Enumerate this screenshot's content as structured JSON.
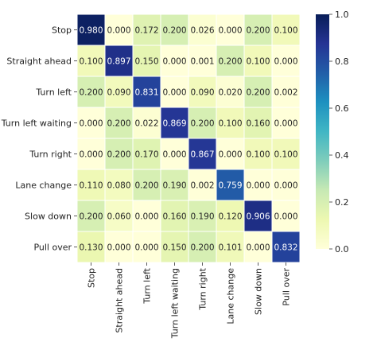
{
  "chart_data": {
    "type": "heatmap",
    "rows": [
      "Stop",
      "Straight ahead",
      "Turn left",
      "Turn left waiting",
      "Turn right",
      "Lane change",
      "Slow down",
      "Pull over"
    ],
    "columns": [
      "Stop",
      "Straight ahead",
      "Turn left",
      "Turn left waiting",
      "Turn right",
      "Lane change",
      "Slow down",
      "Pull over"
    ],
    "values": [
      [
        0.98,
        0.0,
        0.172,
        0.2,
        0.026,
        0.0,
        0.2,
        0.1
      ],
      [
        0.1,
        0.897,
        0.15,
        0.0,
        0.001,
        0.2,
        0.1,
        0.0
      ],
      [
        0.2,
        0.09,
        0.831,
        0.0,
        0.09,
        0.02,
        0.2,
        0.002
      ],
      [
        0.0,
        0.2,
        0.022,
        0.869,
        0.2,
        0.1,
        0.16,
        0.0
      ],
      [
        0.0,
        0.2,
        0.17,
        0.0,
        0.867,
        0.0,
        0.1,
        0.1
      ],
      [
        0.11,
        0.08,
        0.2,
        0.19,
        0.002,
        0.759,
        0.0,
        0.0
      ],
      [
        0.2,
        0.06,
        0.0,
        0.16,
        0.19,
        0.12,
        0.906,
        0.0
      ],
      [
        0.13,
        0.0,
        0.0,
        0.15,
        0.2,
        0.101,
        0.0,
        0.832
      ]
    ],
    "value_format": "3 decimals",
    "colormap": "YlGnBu",
    "color_range": [
      0.0,
      1.0
    ],
    "colorbar_ticks": [
      0.0,
      0.2,
      0.4,
      0.6,
      0.8,
      1.0
    ],
    "colorbar_labels": [
      "0.0",
      "0.2",
      "0.4",
      "0.6",
      "0.8",
      "1.0"
    ],
    "cell_separators": "white lines",
    "x_tick_rotation": "vertical"
  }
}
